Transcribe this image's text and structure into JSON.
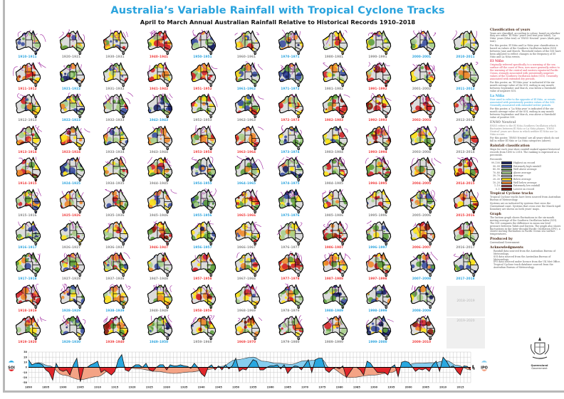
{
  "header": {
    "title": "Australia’s Variable Rainfall with Tropical Cyclone Tracks",
    "subtitle": "April to March Annual Australian Rainfall Relative to Historical Records 1910–2018"
  },
  "phase_colors": {
    "E": "#ef3b3b",
    "L": "#2aa3dd",
    "N": "#8a8a8a"
  },
  "cyclone_track_color": "#9b1f9b",
  "decades": [
    {
      "years": [
        [
          "1910–1911",
          "L"
        ],
        [
          "1911–1912",
          "E"
        ],
        [
          "1912–1913",
          "N"
        ],
        [
          "1913–1914",
          "E"
        ],
        [
          "1914–1915",
          "E"
        ],
        [
          "1915–1916",
          "N"
        ],
        [
          "1916–1917",
          "L"
        ],
        [
          "1917–1918",
          "L"
        ],
        [
          "1918–1919",
          "E"
        ],
        [
          "1919–1920",
          "E"
        ]
      ]
    },
    {
      "years": [
        [
          "1920–1921",
          "N"
        ],
        [
          "1921–1922",
          "L"
        ],
        [
          "1922–1923",
          "L"
        ],
        [
          "1923–1924",
          "E"
        ],
        [
          "1924–1925",
          "L"
        ],
        [
          "1925–1926",
          "E"
        ],
        [
          "1926–1927",
          "N"
        ],
        [
          "1927–1928",
          "N"
        ],
        [
          "1928–1929",
          "L"
        ],
        [
          "1929–1930",
          "L"
        ]
      ]
    },
    {
      "years": [
        [
          "1930–1931",
          "N"
        ],
        [
          "1931–1932",
          "N"
        ],
        [
          "1932–1933",
          "N"
        ],
        [
          "1933–1934",
          "N"
        ],
        [
          "1934–1935",
          "N"
        ],
        [
          "1935–1936",
          "N"
        ],
        [
          "1936–1937",
          "N"
        ],
        [
          "1937–1938",
          "N"
        ],
        [
          "1938–1939",
          "L"
        ],
        [
          "1939–1940",
          "E"
        ]
      ]
    },
    {
      "years": [
        [
          "1940–1941",
          "E"
        ],
        [
          "1941–1942",
          "E"
        ],
        [
          "1942–1943",
          "L"
        ],
        [
          "1943–1944",
          "N"
        ],
        [
          "1944–1945",
          "N"
        ],
        [
          "1945–1946",
          "N"
        ],
        [
          "1946–1947",
          "E"
        ],
        [
          "1947–1948",
          "N"
        ],
        [
          "1948–1949",
          "N"
        ],
        [
          "1949–1950",
          "L"
        ]
      ]
    },
    {
      "years": [
        [
          "1950–1951",
          "L"
        ],
        [
          "1951–1952",
          "E"
        ],
        [
          "1952–1953",
          "N"
        ],
        [
          "1953–1954",
          "E"
        ],
        [
          "1954–1955",
          "L"
        ],
        [
          "1955–1956",
          "L"
        ],
        [
          "1956–1957",
          "L"
        ],
        [
          "1957–1958",
          "E"
        ],
        [
          "1958–1959",
          "E"
        ],
        [
          "1959–1960",
          "N"
        ]
      ]
    },
    {
      "years": [
        [
          "1960–1961",
          "N"
        ],
        [
          "1961–1962",
          "L"
        ],
        [
          "1962–1963",
          "N"
        ],
        [
          "1963–1964",
          "E"
        ],
        [
          "1964–1965",
          "L"
        ],
        [
          "1965–1966",
          "E"
        ],
        [
          "1966–1967",
          "N"
        ],
        [
          "1967–1968",
          "N"
        ],
        [
          "1968–1969",
          "N"
        ],
        [
          "1969–1970",
          "E"
        ]
      ]
    },
    {
      "years": [
        [
          "1970–1971",
          "L"
        ],
        [
          "1971–1972",
          "L"
        ],
        [
          "1972–1973",
          "E"
        ],
        [
          "1973–1974",
          "L"
        ],
        [
          "1974–1975",
          "L"
        ],
        [
          "1975–1976",
          "L"
        ],
        [
          "1976–1977",
          "N"
        ],
        [
          "1977–1978",
          "E"
        ],
        [
          "1978–1979",
          "N"
        ],
        [
          "1979–1980",
          "N"
        ]
      ]
    },
    {
      "years": [
        [
          "1980–1981",
          "N"
        ],
        [
          "1981–1982",
          "N"
        ],
        [
          "1982–1983",
          "E"
        ],
        [
          "1983–1984",
          "N"
        ],
        [
          "1984–1985",
          "N"
        ],
        [
          "1985–1986",
          "N"
        ],
        [
          "1986–1987",
          "E"
        ],
        [
          "1987–1988",
          "E"
        ],
        [
          "1988–1989",
          "L"
        ],
        [
          "1989–1990",
          "N"
        ]
      ]
    },
    {
      "years": [
        [
          "1990–1991",
          "N"
        ],
        [
          "1991–1992",
          "E"
        ],
        [
          "1992–1993",
          "E"
        ],
        [
          "1993–1994",
          "E"
        ],
        [
          "1994–1995",
          "E"
        ],
        [
          "1995–1996",
          "N"
        ],
        [
          "1996–1997",
          "L"
        ],
        [
          "1997–1998",
          "E"
        ],
        [
          "1998–1999",
          "L"
        ],
        [
          "1999–2000",
          "L"
        ]
      ]
    },
    {
      "years": [
        [
          "2000–2001",
          "L"
        ],
        [
          "2001–2002",
          "N"
        ],
        [
          "2002–2003",
          "E"
        ],
        [
          "2003–2004",
          "N"
        ],
        [
          "2004–2005",
          "E"
        ],
        [
          "2005–2006",
          "N"
        ],
        [
          "2006–2007",
          "E"
        ],
        [
          "2007–2008",
          "L"
        ],
        [
          "2008–2009",
          "L"
        ],
        [
          "2009–2010",
          "E"
        ]
      ]
    },
    {
      "years": [
        [
          "2010–2011",
          "L"
        ],
        [
          "2011–2012",
          "L"
        ],
        [
          "2012–2013",
          "N"
        ],
        [
          "2013–2014",
          "N"
        ],
        [
          "2014–2015",
          "E"
        ],
        [
          "2015–2016",
          "E"
        ],
        [
          "2016–2017",
          "N"
        ],
        [
          "2017–2018",
          "L"
        ]
      ]
    }
  ],
  "placeholders": [
    "2018–2019",
    "2019–2020"
  ],
  "panel": {
    "classification": {
      "heading": "Classification of years",
      "text": "Years are classified, according to colour, based on whether they are either ‘El Niño’ years (red text year label), ‘La Niña’ years (blue text) or ‘ENSO Neutral’ years (dark grey text).",
      "text2": "For this poster, El Niño and La Niña year classification is based on values of the Southern Oscillation Index (SOI) between June and March. Threshold values of the SOI have been adjusted to reflect changes in the frequency of El Niño and La Niña events."
    },
    "el_nino": {
      "heading": "El Niño",
      "text": "Originally referred specifically to a warming of the sea surface off the coast of Peru, now more generally refers to the warming of the central and eastern equatorial Pacific Ocean, strongly associated with persistently negative values of the Southern Oscillation Index (SOI). Generally associated with extended dry periods.",
      "text2": "For this poster, an ‘El Niño year’ is indicated if the six-month average value of the SOI, ending in any month between September and March, was below a threshold value of negative SOI."
    },
    "la_nina": {
      "heading": "La Niña",
      "text": "Now used to refer to the opposite of El Niño, or events associated with persistently positive values of the SOI. Generally associated with extended wetter periods.",
      "text2": "For this poster, a ‘La Niña year’ is indicated if the six-month average value of the SOI, ending in any month between September and March, was above a threshold value of positive SOI."
    },
    "enso_neutral": {
      "heading": "ENSO Neutral",
      "text": "ENSO refers to the El Niño–Southern Oscillation which fluctuates between El Niño or La Niña phases. ‘ENSO Neutral’ years are those in which neither El Niño nor La Niña occurs.",
      "text2": "For this poster, ‘ENSO Neutral’ are all years which do not fall in either El Niño or La Niña categories (above)."
    },
    "rainfall": {
      "heading": "Rainfall classification",
      "text": "Maps for each year show rainfall ranked against historical records from 1890 to 2018. The ranking is expressed as a percentile.",
      "legend_prefix": "Percentile",
      "legend": [
        {
          "range": "99–100",
          "label": "Highest on record",
          "color": "#1c2466"
        },
        {
          "range": "90–99",
          "label": "Extremely high rainfall",
          "color": "#3b4fa0"
        },
        {
          "range": "80–90",
          "label": "Well above average",
          "color": "#5e9e3e"
        },
        {
          "range": "70–80",
          "label": "Above average",
          "color": "#a8cf8c"
        },
        {
          "range": "30–70",
          "label": "Average",
          "color": "#dcdcdc"
        },
        {
          "range": "20–30",
          "label": "Below average",
          "color": "#ffe21a"
        },
        {
          "range": "10–20",
          "label": "Well below average",
          "color": "#ef8a2e"
        },
        {
          "range": "1–10",
          "label": "Extremely low rainfall",
          "color": "#d3262a"
        },
        {
          "range": "0–1",
          "label": "Lowest on record",
          "color": "#8a1c0c"
        }
      ]
    },
    "cyclone": {
      "heading": "Tropical Cyclone tracks",
      "text": "Tropical Cyclone tracks have been sourced from Australian Bureau of Meteorology.",
      "text2": "Systems are as indicated by systems that cross the Queensland coast. Systems that cross over the March-April boundary are shown on both years' maps."
    },
    "graph": {
      "heading": "Graph",
      "text": "The bottom graph shows fluctuations in the six-month moving average of the Southern Oscillation Index (SOI). The SOI compares the difference in mean sea level pressure between Tahiti and Darwin. The graph also shows fluctuations in the Inter-decadal Pacific Oscillation (IPO), a slower moving fluctuation in Pacific Ocean sea surface temperatures."
    },
    "produced": {
      "heading": "Produced by",
      "text": "Queensland Government"
    },
    "ack": {
      "heading": "Acknowledgments",
      "items": [
        "Rainfall data sourced from the Australian Bureau of Meteorology.",
        "SOI data sourced from the Australian Bureau of Meteorology.",
        "IPO data sourced under licence from the UK Met Office.",
        "Tropical Cyclone track database sourced from the Australian Bureau of Meteorology."
      ]
    },
    "logo_text": [
      "Queensland",
      "Government"
    ]
  },
  "chart_data": {
    "type": "area",
    "x_start": 1890,
    "x_end": 2018,
    "x_ticks": [
      1890,
      1895,
      1900,
      1905,
      1910,
      1915,
      1920,
      1925,
      1930,
      1935,
      1940,
      1945,
      1950,
      1955,
      1960,
      1965,
      1970,
      1975,
      1980,
      1985,
      1990,
      1995,
      2000,
      2005,
      2010,
      2015
    ],
    "left_axis": {
      "label": "SOI",
      "ylim": [
        -30,
        30
      ],
      "ticks": [
        30,
        20,
        10,
        0,
        -10,
        -20,
        -30
      ]
    },
    "right_axis": {
      "label": "IPO",
      "ylim": [
        -3,
        3
      ],
      "ticks": [
        3,
        2,
        1,
        0,
        -1,
        -2,
        -3
      ]
    },
    "grid": true,
    "soi": {
      "positive_color": "#29a8e0",
      "negative_color": "#e0262a",
      "values": [
        15,
        5,
        8,
        8,
        5,
        -5,
        -10,
        -25,
        8,
        -5,
        -8,
        -5,
        -15,
        5,
        18,
        -28,
        0,
        0,
        5,
        8,
        12,
        -10,
        -5,
        -10,
        -15,
        -8,
        15,
        25,
        -5,
        -8,
        0,
        5,
        5,
        0,
        8,
        -5,
        -8,
        0,
        5,
        5,
        -5,
        5,
        3,
        3,
        5,
        3,
        2,
        -2,
        8,
        0,
        -12,
        -18,
        0,
        5,
        -5,
        3,
        -5,
        5,
        -3,
        3,
        18,
        -8,
        -3,
        -5,
        5,
        15,
        12,
        -5,
        -5,
        0,
        3,
        3,
        5,
        -3,
        5,
        -12,
        -3,
        3,
        2,
        -5,
        5,
        15,
        -10,
        15,
        18,
        18,
        -5,
        -10,
        -3,
        0,
        -3,
        3,
        -20,
        -10,
        0,
        0,
        -5,
        -15,
        12,
        8,
        -2,
        -10,
        -10,
        -10,
        -15,
        0,
        5,
        -18,
        10,
        12,
        10,
        2,
        -8,
        -3,
        -5,
        -2,
        -8,
        5,
        12,
        -8,
        20,
        12,
        0,
        3,
        -8,
        -15,
        3,
        2,
        -5
      ]
    },
    "ipo": {
      "positive_color": "#86cdef",
      "negative_color": "#f4a385",
      "years": [
        1890,
        1893,
        1896,
        1900,
        1905,
        1910,
        1914,
        1917,
        1922,
        1927,
        1932,
        1937,
        1942,
        1946,
        1950,
        1955,
        1958,
        1962,
        1966,
        1970,
        1975,
        1977,
        1983,
        1990,
        1995,
        1998,
        2002,
        2007,
        2011,
        2014,
        2018
      ],
      "values": [
        0.3,
        0.9,
        0.3,
        -1.5,
        -2.4,
        -1.8,
        -0.4,
        0.1,
        -0.3,
        -0.8,
        -1.2,
        -0.9,
        -0.4,
        0.2,
        1.5,
        2.0,
        1.2,
        0.8,
        0.6,
        1.3,
        1.5,
        0,
        -2.0,
        -1.5,
        -1.0,
        0,
        0.8,
        0.9,
        1.3,
        0.4,
        -0.5
      ]
    }
  }
}
